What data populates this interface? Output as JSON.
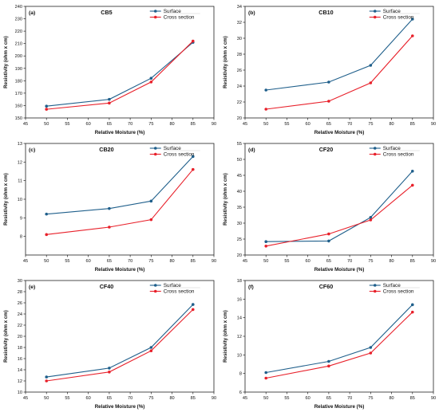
{
  "figure": {
    "legend_surface": "Surface",
    "legend_cross": "Cross section",
    "colors": {
      "surface": "#1f5f8b",
      "cross": "#e8202a",
      "axis": "#222222"
    }
  },
  "chart_data": [
    {
      "type": "line",
      "panel_label": "(a)",
      "title": "CB5",
      "xlabel": "Relative Moisture (%)",
      "ylabel": "Resistivity (ohm x cm)",
      "x": [
        50,
        65,
        75,
        85
      ],
      "xlim": [
        45,
        90
      ],
      "ylim": [
        150,
        240
      ],
      "xticks": [
        45,
        50,
        55,
        60,
        65,
        70,
        75,
        80,
        85,
        90
      ],
      "yticks": [
        150,
        160,
        170,
        180,
        190,
        200,
        210,
        220,
        230,
        240
      ],
      "legend_position": "top-right",
      "grid": false,
      "series": [
        {
          "name": "Surface",
          "values": [
            159.5,
            165,
            182,
            211
          ]
        },
        {
          "name": "Cross section",
          "values": [
            157,
            162,
            179,
            212
          ]
        }
      ]
    },
    {
      "type": "line",
      "panel_label": "(b)",
      "title": "CB10",
      "xlabel": "Relative Moisture (%)",
      "ylabel": "Resistivity (ohm x cm)",
      "x": [
        50,
        65,
        75,
        85
      ],
      "xlim": [
        45,
        90
      ],
      "ylim": [
        20,
        34
      ],
      "xticks": [
        45,
        50,
        55,
        60,
        65,
        70,
        75,
        80,
        85,
        90
      ],
      "yticks": [
        20,
        22,
        24,
        26,
        28,
        30,
        32,
        34
      ],
      "legend_position": "top-right",
      "grid": false,
      "series": [
        {
          "name": "Surface",
          "values": [
            23.5,
            24.5,
            26.6,
            32.4
          ]
        },
        {
          "name": "Cross section",
          "values": [
            21.1,
            22.1,
            24.4,
            30.3
          ]
        }
      ]
    },
    {
      "type": "line",
      "panel_label": "(c)",
      "title": "CB20",
      "xlabel": "Relative Moisture (%)",
      "ylabel": "Resistivity (ohm x cm)",
      "x": [
        50,
        65,
        75,
        85
      ],
      "xlim": [
        45,
        90
      ],
      "ylim": [
        7,
        13
      ],
      "xticks": [
        45,
        50,
        55,
        60,
        65,
        70,
        75,
        80,
        85,
        90
      ],
      "yticks": [
        8,
        9,
        10,
        11,
        12,
        13
      ],
      "legend_position": "top-right",
      "grid": false,
      "series": [
        {
          "name": "Surface",
          "values": [
            9.2,
            9.5,
            9.9,
            12.3
          ]
        },
        {
          "name": "Cross section",
          "values": [
            8.1,
            8.5,
            8.9,
            11.6
          ]
        }
      ]
    },
    {
      "type": "line",
      "panel_label": "(d)",
      "title": "CF20",
      "xlabel": "Relative Moisture (%)",
      "ylabel": "Resistivity (ohm x cm)",
      "x": [
        50,
        65,
        75,
        85
      ],
      "xlim": [
        45,
        90
      ],
      "ylim": [
        20,
        55
      ],
      "xticks": [
        45,
        50,
        55,
        60,
        65,
        70,
        75,
        80,
        85,
        90
      ],
      "yticks": [
        20,
        25,
        30,
        35,
        40,
        45,
        50,
        55
      ],
      "legend_position": "top-right",
      "grid": false,
      "series": [
        {
          "name": "Surface",
          "values": [
            24.2,
            24.4,
            31.8,
            46.3
          ]
        },
        {
          "name": "Cross section",
          "values": [
            22.8,
            26.6,
            31,
            41.9
          ]
        }
      ]
    },
    {
      "type": "line",
      "panel_label": "(e)",
      "title": "CF40",
      "xlabel": "Relative Moisture (%)",
      "ylabel": "Resistivity (ohm x cm)",
      "x": [
        50,
        65,
        75,
        85
      ],
      "xlim": [
        45,
        90
      ],
      "ylim": [
        10,
        30
      ],
      "xticks": [
        45,
        50,
        55,
        60,
        65,
        70,
        75,
        80,
        85,
        90
      ],
      "yticks": [
        10,
        12,
        14,
        16,
        18,
        20,
        22,
        24,
        26,
        28,
        30
      ],
      "legend_position": "top-right",
      "grid": false,
      "series": [
        {
          "name": "Surface",
          "values": [
            12.7,
            14.3,
            18,
            25.7
          ]
        },
        {
          "name": "Cross section",
          "values": [
            12,
            13.6,
            17.4,
            24.8
          ]
        }
      ]
    },
    {
      "type": "line",
      "panel_label": "(f)",
      "title": "CF60",
      "xlabel": "Relative Moisture (%)",
      "ylabel": "Resistivity (ohm x cm)",
      "x": [
        50,
        65,
        75,
        85
      ],
      "xlim": [
        45,
        90
      ],
      "ylim": [
        6,
        18
      ],
      "xticks": [
        45,
        50,
        55,
        60,
        65,
        70,
        75,
        80,
        85,
        90
      ],
      "yticks": [
        6,
        8,
        10,
        12,
        14,
        16,
        18
      ],
      "legend_position": "top-right",
      "grid": false,
      "series": [
        {
          "name": "Surface",
          "values": [
            8.1,
            9.3,
            10.8,
            15.4
          ]
        },
        {
          "name": "Cross section",
          "values": [
            7.5,
            8.8,
            10.2,
            14.6
          ]
        }
      ]
    }
  ]
}
